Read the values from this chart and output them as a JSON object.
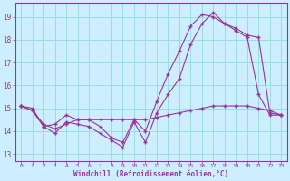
{
  "xlabel": "Windchill (Refroidissement éolien,°C)",
  "bg_color": "#cceeff",
  "grid_color": "#99dddd",
  "line_color": "#993399",
  "xlim": [
    -0.5,
    23.5
  ],
  "ylim": [
    12.7,
    19.6
  ],
  "xticks": [
    0,
    1,
    2,
    3,
    4,
    5,
    6,
    7,
    8,
    9,
    10,
    11,
    12,
    13,
    14,
    15,
    16,
    17,
    18,
    19,
    20,
    21,
    22,
    23
  ],
  "yticks": [
    13,
    14,
    15,
    16,
    17,
    18,
    19
  ],
  "line1_x": [
    0,
    1,
    2,
    3,
    4,
    5,
    6,
    7,
    8,
    9,
    10,
    11,
    12,
    13,
    14,
    15,
    16,
    17,
    18,
    19,
    20,
    21,
    22,
    23
  ],
  "line1_y": [
    15.1,
    15.0,
    14.2,
    13.9,
    14.4,
    14.3,
    14.2,
    13.9,
    13.6,
    13.3,
    14.4,
    13.5,
    14.8,
    15.6,
    16.3,
    17.8,
    18.7,
    19.2,
    18.7,
    18.4,
    18.1,
    15.6,
    14.7,
    14.7
  ],
  "line2_x": [
    0,
    1,
    2,
    3,
    4,
    5,
    6,
    7,
    8,
    9,
    10,
    11,
    12,
    13,
    14,
    15,
    16,
    17,
    18,
    19,
    20,
    21,
    22,
    23
  ],
  "line2_y": [
    15.1,
    14.9,
    14.3,
    14.1,
    14.3,
    14.5,
    14.5,
    14.5,
    14.5,
    14.5,
    14.5,
    14.5,
    14.6,
    14.7,
    14.8,
    14.9,
    15.0,
    15.1,
    15.1,
    15.1,
    15.1,
    15.0,
    14.9,
    14.7
  ],
  "line3_x": [
    0,
    1,
    2,
    3,
    4,
    5,
    6,
    7,
    8,
    9,
    10,
    11,
    12,
    13,
    14,
    15,
    16,
    17,
    18,
    19,
    20,
    21,
    22,
    23
  ],
  "line3_y": [
    15.1,
    14.9,
    14.2,
    14.3,
    14.7,
    14.5,
    14.5,
    14.2,
    13.7,
    13.5,
    14.5,
    14.0,
    15.3,
    16.5,
    17.5,
    18.6,
    19.1,
    19.0,
    18.7,
    18.5,
    18.2,
    18.1,
    14.8,
    14.7
  ]
}
